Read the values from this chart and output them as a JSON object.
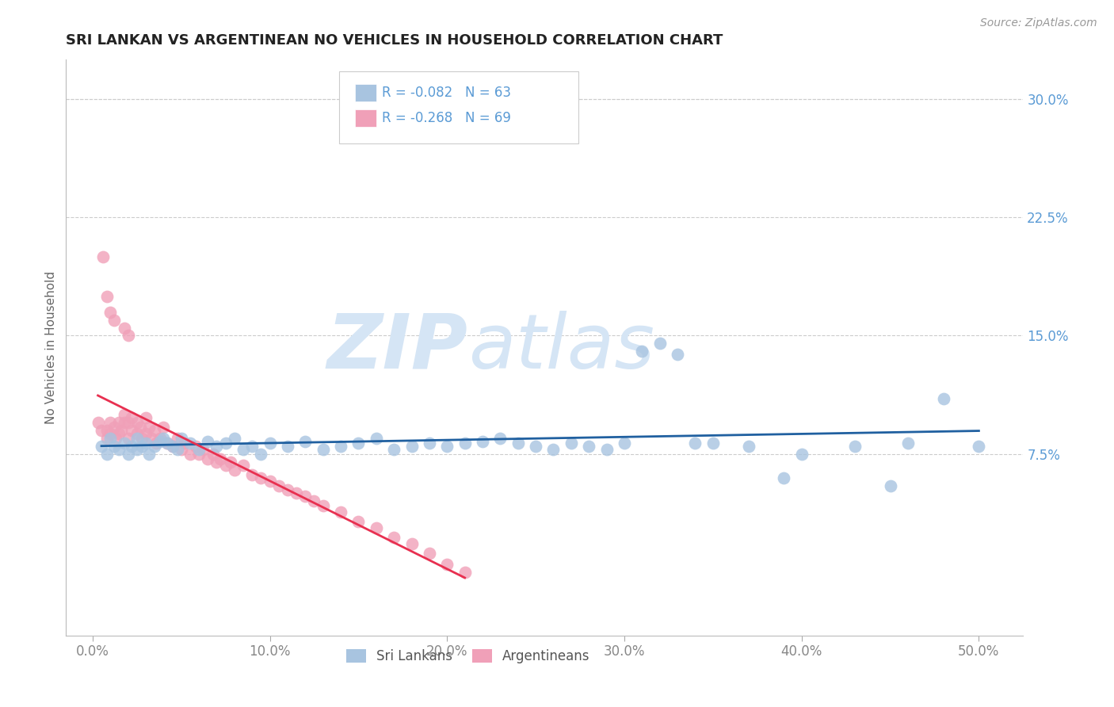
{
  "title": "SRI LANKAN VS ARGENTINEAN NO VEHICLES IN HOUSEHOLD CORRELATION CHART",
  "source": "Source: ZipAtlas.com",
  "ylabel": "No Vehicles in Household",
  "xlabel_ticks": [
    "0.0%",
    "10.0%",
    "20.0%",
    "30.0%",
    "40.0%",
    "50.0%"
  ],
  "xlabel_vals": [
    0.0,
    0.1,
    0.2,
    0.3,
    0.4,
    0.5
  ],
  "ylabel_ticks": [
    "7.5%",
    "15.0%",
    "22.5%",
    "30.0%"
  ],
  "ylabel_vals": [
    0.075,
    0.15,
    0.225,
    0.3
  ],
  "xlim": [
    -0.015,
    0.525
  ],
  "ylim": [
    -0.04,
    0.325
  ],
  "sri_lankans": {
    "x": [
      0.005,
      0.008,
      0.01,
      0.012,
      0.015,
      0.018,
      0.02,
      0.022,
      0.025,
      0.025,
      0.028,
      0.03,
      0.032,
      0.035,
      0.038,
      0.04,
      0.042,
      0.045,
      0.048,
      0.05,
      0.055,
      0.06,
      0.065,
      0.07,
      0.075,
      0.08,
      0.085,
      0.09,
      0.095,
      0.1,
      0.11,
      0.12,
      0.13,
      0.14,
      0.15,
      0.16,
      0.17,
      0.18,
      0.19,
      0.2,
      0.21,
      0.22,
      0.23,
      0.24,
      0.25,
      0.26,
      0.27,
      0.28,
      0.29,
      0.3,
      0.31,
      0.32,
      0.33,
      0.35,
      0.37,
      0.4,
      0.43,
      0.46,
      0.48,
      0.5,
      0.34,
      0.45,
      0.39
    ],
    "y": [
      0.08,
      0.075,
      0.085,
      0.08,
      0.078,
      0.082,
      0.075,
      0.08,
      0.085,
      0.078,
      0.08,
      0.082,
      0.075,
      0.08,
      0.083,
      0.085,
      0.082,
      0.08,
      0.078,
      0.085,
      0.082,
      0.078,
      0.083,
      0.08,
      0.082,
      0.085,
      0.078,
      0.08,
      0.075,
      0.082,
      0.08,
      0.083,
      0.078,
      0.08,
      0.082,
      0.085,
      0.078,
      0.08,
      0.082,
      0.08,
      0.082,
      0.083,
      0.085,
      0.082,
      0.08,
      0.078,
      0.082,
      0.08,
      0.078,
      0.082,
      0.14,
      0.145,
      0.138,
      0.082,
      0.08,
      0.075,
      0.08,
      0.082,
      0.11,
      0.08,
      0.082,
      0.055,
      0.06
    ]
  },
  "argentineans": {
    "x": [
      0.003,
      0.005,
      0.006,
      0.008,
      0.008,
      0.01,
      0.01,
      0.012,
      0.013,
      0.015,
      0.015,
      0.016,
      0.018,
      0.018,
      0.02,
      0.02,
      0.022,
      0.022,
      0.025,
      0.025,
      0.027,
      0.028,
      0.03,
      0.03,
      0.032,
      0.033,
      0.035,
      0.036,
      0.038,
      0.04,
      0.042,
      0.045,
      0.048,
      0.05,
      0.052,
      0.055,
      0.058,
      0.06,
      0.062,
      0.065,
      0.068,
      0.07,
      0.072,
      0.075,
      0.078,
      0.08,
      0.085,
      0.09,
      0.095,
      0.1,
      0.105,
      0.11,
      0.115,
      0.12,
      0.125,
      0.13,
      0.14,
      0.15,
      0.16,
      0.17,
      0.18,
      0.19,
      0.2,
      0.21,
      0.018,
      0.02,
      0.008,
      0.01,
      0.012
    ],
    "y": [
      0.095,
      0.09,
      0.2,
      0.09,
      0.085,
      0.095,
      0.088,
      0.092,
      0.085,
      0.095,
      0.088,
      0.09,
      0.1,
      0.095,
      0.095,
      0.085,
      0.098,
      0.09,
      0.095,
      0.088,
      0.092,
      0.085,
      0.098,
      0.088,
      0.092,
      0.085,
      0.09,
      0.082,
      0.085,
      0.092,
      0.082,
      0.08,
      0.085,
      0.078,
      0.082,
      0.075,
      0.08,
      0.075,
      0.078,
      0.072,
      0.075,
      0.07,
      0.072,
      0.068,
      0.07,
      0.065,
      0.068,
      0.062,
      0.06,
      0.058,
      0.055,
      0.052,
      0.05,
      0.048,
      0.045,
      0.042,
      0.038,
      0.032,
      0.028,
      0.022,
      0.018,
      0.012,
      0.005,
      0.0,
      0.155,
      0.15,
      0.175,
      0.165,
      0.16
    ]
  },
  "sri_color": "#a8c4e0",
  "arg_color": "#f0a0b8",
  "sri_line_color": "#2060a0",
  "arg_line_color": "#e83050",
  "legend_R_sri": "R = -0.082",
  "legend_N_sri": "N = 63",
  "legend_R_arg": "R = -0.268",
  "legend_N_arg": "N = 69",
  "legend_label_sri": "Sri Lankans",
  "legend_label_arg": "Argentineans",
  "watermark_zip": "ZIP",
  "watermark_atlas": "atlas",
  "watermark_color": "#d5e5f5",
  "grid_color": "#cccccc",
  "title_color": "#222222",
  "axis_label_color": "#5b9bd5",
  "ylabel_text_color": "#666666",
  "background_color": "#ffffff"
}
